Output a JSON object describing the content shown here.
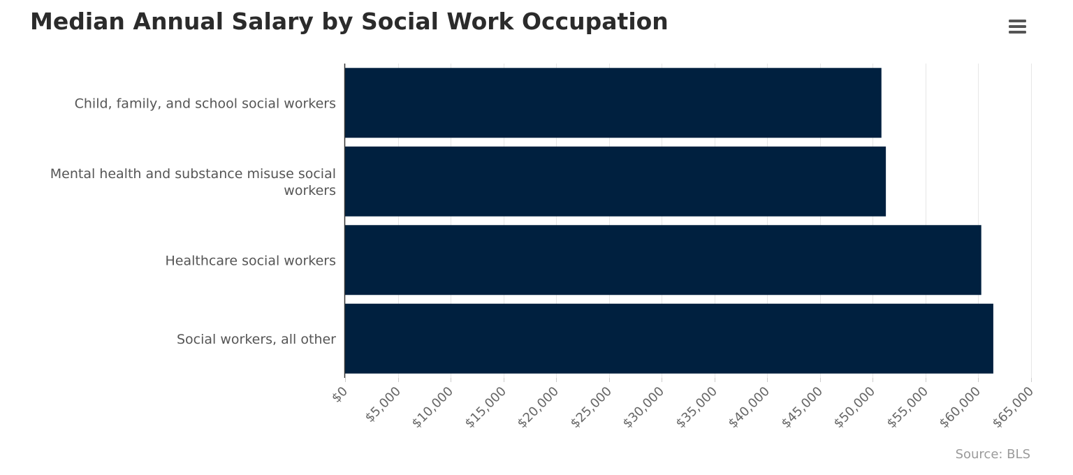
{
  "chart_data": {
    "type": "bar",
    "orientation": "horizontal",
    "title": "Median Annual Salary by Social Work Occupation",
    "categories": [
      "Child, family, and school social workers",
      "Mental health and substance misuse social workers",
      "Healthcare social workers",
      "Social workers, all other"
    ],
    "values": [
      50820,
      51240,
      60280,
      61420
    ],
    "xlim": [
      0,
      65000
    ],
    "x_ticks": [
      0,
      5000,
      10000,
      15000,
      20000,
      25000,
      30000,
      35000,
      40000,
      45000,
      50000,
      55000,
      60000,
      65000
    ],
    "x_tick_labels": [
      "$0",
      "$5,000",
      "$10,000",
      "$15,000",
      "$20,000",
      "$25,000",
      "$30,000",
      "$35,000",
      "$40,000",
      "$45,000",
      "$50,000",
      "$55,000",
      "$60,000",
      "$65,000"
    ],
    "xlabel": "",
    "ylabel": "",
    "grid": true,
    "legend": "none",
    "bar_color": "#00203f",
    "source": "Source: BLS"
  },
  "menu": {
    "icon": "hamburger-menu-icon"
  }
}
